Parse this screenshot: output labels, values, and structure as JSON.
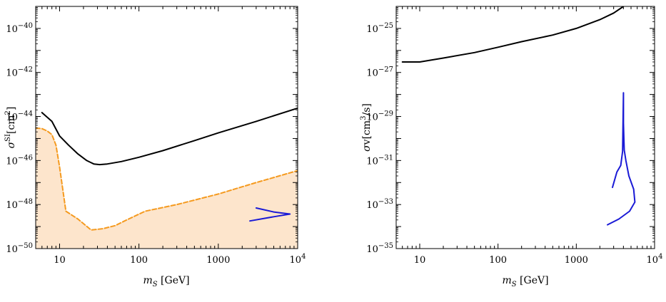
{
  "chart_data": [
    {
      "type": "line",
      "xscale": "log",
      "yscale": "log",
      "xlim": [
        5,
        10000
      ],
      "ylim": [
        1e-50,
        1e-39
      ],
      "x_ticks": [
        {
          "value": 10,
          "label": "10"
        },
        {
          "value": 100,
          "label": "100"
        },
        {
          "value": 1000,
          "label": "1000"
        },
        {
          "value": 10000,
          "label": "10",
          "sup": "4"
        }
      ],
      "y_ticks": [
        {
          "value": 1e-50,
          "label": "10",
          "sup": "−50"
        },
        {
          "value": 1e-48,
          "label": "10",
          "sup": "−48"
        },
        {
          "value": 1e-46,
          "label": "10",
          "sup": "−46"
        },
        {
          "value": 1e-44,
          "label": "10",
          "sup": "−44"
        },
        {
          "value": 1e-42,
          "label": "10",
          "sup": "−42"
        },
        {
          "value": 1e-40,
          "label": "10",
          "sup": "−40"
        }
      ],
      "xlabel": {
        "main": "m",
        "sub": "S",
        "rest": " [GeV]"
      },
      "ylabel": {
        "sigma": "σ",
        "sup": "SI",
        "bracket": "[cm",
        "sup2": "2",
        "close": "]"
      },
      "shaded_region_color": "#fde5cc",
      "series": [
        {
          "style": "solid",
          "color": "#000000",
          "x": [
            6,
            8,
            10,
            13,
            17,
            22,
            27,
            32,
            40,
            60,
            100,
            200,
            500,
            1000,
            3000,
            10000
          ],
          "y": [
            1.5e-44,
            6e-45,
            1.3e-45,
            5e-46,
            2e-46,
            1e-46,
            7e-47,
            6.5e-47,
            7e-47,
            9e-47,
            1.4e-46,
            2.8e-46,
            8e-46,
            1.8e-45,
            6e-45,
            2.4e-44
          ]
        },
        {
          "style": "dashed",
          "color": "#f59a1f",
          "x": [
            5,
            6,
            7,
            8,
            9,
            10,
            12,
            17,
            25,
            35,
            50,
            70,
            120,
            300,
            1000,
            3000,
            10000
          ],
          "y": [
            3e-45,
            2.8e-45,
            2.2e-45,
            1.5e-45,
            5e-46,
            5e-47,
            5e-49,
            2.2e-49,
            7e-50,
            8e-50,
            1.1e-49,
            2e-49,
            5e-49,
            1e-48,
            3e-48,
            1e-47,
            3.5e-47
          ]
        },
        {
          "style": "solid",
          "color": "#1a1ad6",
          "x": [
            2500,
            5000,
            8000,
            5000,
            3000
          ],
          "y": [
            1.8e-49,
            2.8e-49,
            3.7e-49,
            4.6e-49,
            7e-49
          ]
        }
      ]
    },
    {
      "type": "line",
      "xscale": "log",
      "yscale": "log",
      "xlim": [
        5,
        10000
      ],
      "ylim": [
        1e-35,
        1e-24
      ],
      "x_ticks": [
        {
          "value": 10,
          "label": "10"
        },
        {
          "value": 100,
          "label": "100"
        },
        {
          "value": 1000,
          "label": "1000"
        },
        {
          "value": 10000,
          "label": "10",
          "sup": "4"
        }
      ],
      "y_ticks": [
        {
          "value": 1e-35,
          "label": "10",
          "sup": "−35"
        },
        {
          "value": 1e-33,
          "label": "10",
          "sup": "−33"
        },
        {
          "value": 1e-31,
          "label": "10",
          "sup": "−31"
        },
        {
          "value": 1e-29,
          "label": "10",
          "sup": "−29"
        },
        {
          "value": 1e-27,
          "label": "10",
          "sup": "−27"
        },
        {
          "value": 1e-25,
          "label": "10",
          "sup": "−25"
        }
      ],
      "xlabel": {
        "main": "m",
        "sub": "S",
        "rest": " [GeV]"
      },
      "ylabel": {
        "sigma": "σ",
        "v": "v[cm",
        "sup": "3",
        "close": "/s]"
      },
      "series": [
        {
          "style": "solid",
          "color": "#000000",
          "x": [
            6,
            10,
            20,
            50,
            100,
            200,
            500,
            1000,
            2000,
            3000,
            4000
          ],
          "y": [
            3e-27,
            3e-27,
            4.5e-27,
            8e-27,
            1.4e-26,
            2.5e-26,
            5e-26,
            1e-25,
            2.5e-25,
            5e-25,
            1e-24
          ]
        },
        {
          "style": "solid",
          "color": "#1a1ad6",
          "x": [
            2500,
            3500,
            4800,
            5600,
            5400,
            4700,
            4300,
            4100,
            4050,
            4000,
            4000,
            3900,
            3700,
            3300,
            2900
          ],
          "y": [
            1.2e-34,
            2.2e-34,
            5e-34,
            1.3e-33,
            5e-33,
            2e-32,
            1e-31,
            3e-31,
            1e-30,
            5e-30,
            1.2e-28,
            2.6e-31,
            6e-32,
            3e-32,
            6e-33
          ]
        }
      ]
    }
  ]
}
